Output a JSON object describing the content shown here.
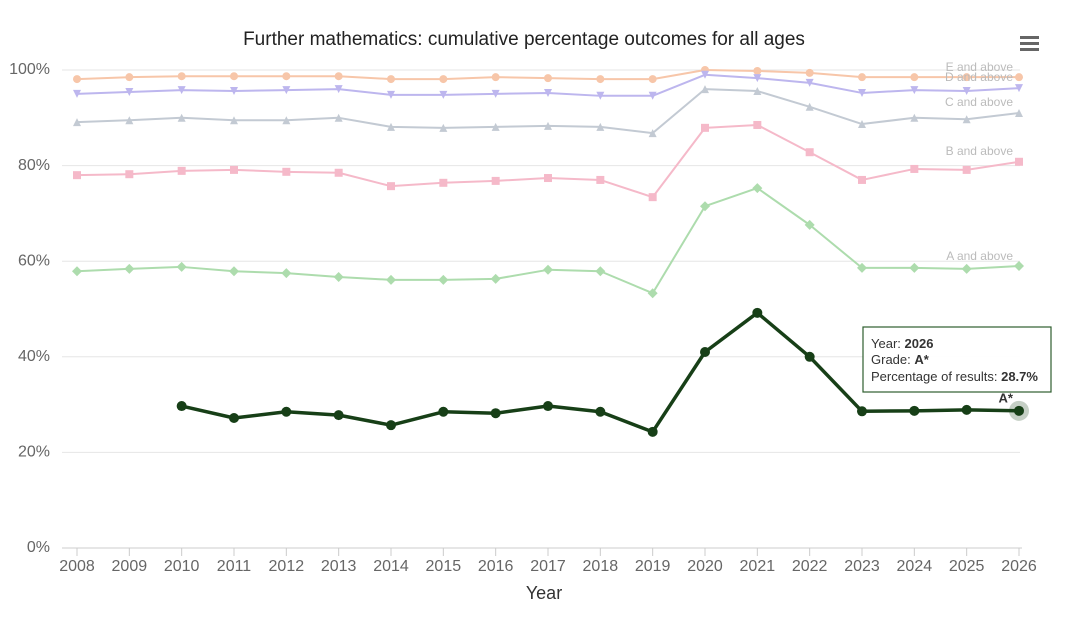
{
  "chart_data": {
    "type": "line",
    "title": "Further mathematics: cumulative percentage outcomes for all ages",
    "x_label": "Year",
    "categories": [
      "2008",
      "2009",
      "2010",
      "2011",
      "2012",
      "2013",
      "2014",
      "2015",
      "2016",
      "2017",
      "2018",
      "2019",
      "2020",
      "2021",
      "2022",
      "2023",
      "2024",
      "2025",
      "2026"
    ],
    "ylim": [
      0,
      100
    ],
    "yticks": [
      {
        "value": 0,
        "label": "0%"
      },
      {
        "value": 20,
        "label": "20%"
      },
      {
        "value": 40,
        "label": "40%"
      },
      {
        "value": 60,
        "label": "60%"
      },
      {
        "value": 80,
        "label": "80%"
      },
      {
        "value": 100,
        "label": "100%"
      }
    ],
    "grid": true,
    "series": [
      {
        "name": "E and above",
        "color": "#f7c6a9",
        "marker": "circle",
        "values": [
          98.1,
          98.5,
          98.7,
          98.7,
          98.7,
          98.7,
          98.1,
          98.1,
          98.5,
          98.3,
          98.1,
          98.1,
          100,
          99.8,
          99.4,
          98.5,
          98.5,
          98.5,
          98.5
        ]
      },
      {
        "name": "D and above",
        "color": "#bdb6ee",
        "marker": "triangle-down",
        "values": [
          95.0,
          95.4,
          95.8,
          95.6,
          95.8,
          96.0,
          94.8,
          94.8,
          95.0,
          95.2,
          94.6,
          94.6,
          99.0,
          98.3,
          97.3,
          95.2,
          95.8,
          95.6,
          96.2
        ]
      },
      {
        "name": "C and above",
        "color": "#c3cad3",
        "marker": "triangle",
        "values": [
          89.1,
          89.5,
          90.0,
          89.5,
          89.5,
          90.0,
          88.1,
          87.9,
          88.1,
          88.3,
          88.1,
          86.8,
          96.0,
          95.6,
          92.3,
          88.7,
          90.0,
          89.7,
          91.0
        ]
      },
      {
        "name": "B and above",
        "color": "#f5b9c9",
        "marker": "square",
        "values": [
          78.0,
          78.2,
          78.9,
          79.1,
          78.7,
          78.5,
          75.7,
          76.4,
          76.8,
          77.4,
          77.0,
          73.4,
          87.9,
          88.5,
          82.8,
          77.0,
          79.3,
          79.1,
          80.8
        ]
      },
      {
        "name": "A and above",
        "color": "#addcad",
        "marker": "diamond",
        "values": [
          57.9,
          58.4,
          58.8,
          57.9,
          57.5,
          56.7,
          56.1,
          56.1,
          56.3,
          58.2,
          57.9,
          53.3,
          71.5,
          75.3,
          67.6,
          58.6,
          58.6,
          58.4,
          59.0
        ]
      },
      {
        "name": "A*",
        "color": "#173f17",
        "marker": "circle",
        "values": [
          null,
          null,
          29.7,
          27.2,
          28.5,
          27.8,
          25.7,
          28.5,
          28.2,
          29.7,
          28.5,
          24.3,
          41.0,
          49.2,
          40.0,
          28.6,
          28.7,
          28.9,
          28.7
        ]
      }
    ],
    "tooltip": {
      "year_label": "Year:",
      "year": "2026",
      "grade_label": "Grade:",
      "grade": "A*",
      "percent_label": "Percentage of results:",
      "percent": "28.7%"
    }
  }
}
